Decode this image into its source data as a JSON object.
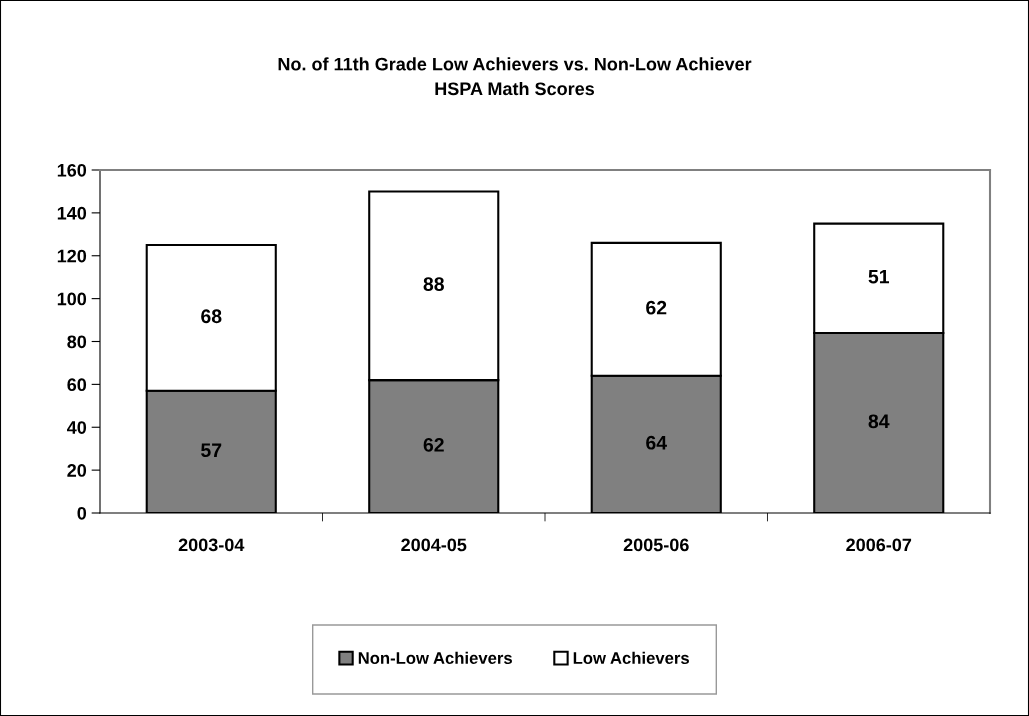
{
  "chart_data": {
    "type": "bar",
    "title": "No. of 11th Grade Low Achievers vs. Non-Low Achiever\nHSPA Math Scores",
    "categories": [
      "2003-04",
      "2004-05",
      "2005-06",
      "2006-07"
    ],
    "stacked": true,
    "series": [
      {
        "name": "Non-Low Achievers",
        "color": "#808080",
        "values": [
          57,
          62,
          64,
          84
        ]
      },
      {
        "name": "Low Achievers",
        "color": "#ffffff",
        "values": [
          68,
          88,
          62,
          51
        ]
      }
    ],
    "ylim": [
      0,
      160
    ],
    "yticks": [
      0,
      20,
      40,
      60,
      80,
      100,
      120,
      140,
      160
    ],
    "data_labels": true,
    "grid": false,
    "legend": "bottom"
  }
}
